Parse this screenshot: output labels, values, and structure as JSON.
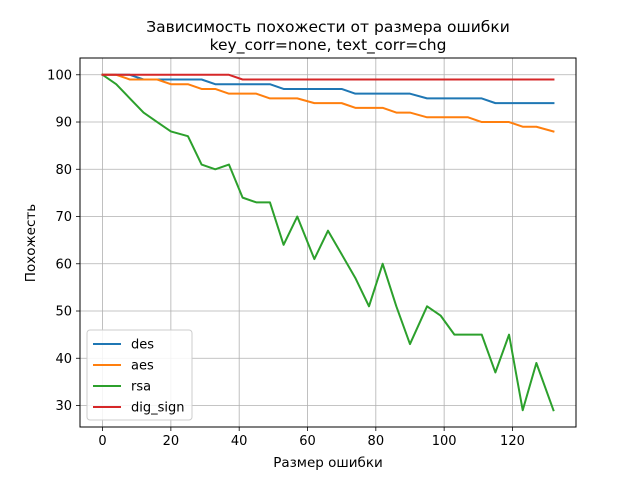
{
  "chart_data": {
    "type": "line",
    "title": "Зависимость похожести от размера ошибки",
    "subtitle": "key_corr=none, text_corr=chg",
    "xlabel": "Размер ошибки",
    "ylabel": "Похожесть",
    "xlim": [
      -6.6,
      138.6
    ],
    "ylim": [
      25.45,
      103.55
    ],
    "xticks": [
      0,
      20,
      40,
      60,
      80,
      100,
      120
    ],
    "yticks": [
      30,
      40,
      50,
      60,
      70,
      80,
      90,
      100
    ],
    "grid": true,
    "legend_position": "lower-left",
    "x": [
      0,
      4,
      8,
      12,
      16,
      20,
      25,
      29,
      33,
      37,
      41,
      45,
      49,
      53,
      57,
      62,
      66,
      70,
      74,
      78,
      82,
      86,
      90,
      95,
      99,
      103,
      107,
      111,
      115,
      119,
      123,
      127,
      132
    ],
    "series": [
      {
        "name": "des",
        "color": "#1f77b4",
        "values": [
          100,
          100,
          100,
          99,
          99,
          99,
          99,
          99,
          98,
          98,
          98,
          98,
          98,
          97,
          97,
          97,
          97,
          97,
          96,
          96,
          96,
          96,
          96,
          95,
          95,
          95,
          95,
          95,
          94,
          94,
          94,
          94,
          94
        ]
      },
      {
        "name": "aes",
        "color": "#ff7f0e",
        "values": [
          100,
          100,
          99,
          99,
          99,
          98,
          98,
          97,
          97,
          96,
          96,
          96,
          95,
          95,
          95,
          94,
          94,
          94,
          93,
          93,
          93,
          92,
          92,
          91,
          91,
          91,
          91,
          90,
          90,
          90,
          89,
          89,
          88
        ]
      },
      {
        "name": "rsa",
        "color": "#2ca02c",
        "values": [
          100,
          98,
          95,
          92,
          90,
          88,
          87,
          81,
          80,
          81,
          74,
          73,
          73,
          64,
          70,
          61,
          67,
          62,
          57,
          51,
          60,
          51,
          43,
          51,
          49,
          45,
          45,
          45,
          37,
          45,
          29,
          39,
          29
        ]
      },
      {
        "name": "dig_sign",
        "color": "#d62728",
        "values": [
          100,
          100,
          100,
          100,
          100,
          100,
          100,
          100,
          100,
          100,
          99,
          99,
          99,
          99,
          99,
          99,
          99,
          99,
          99,
          99,
          99,
          99,
          99,
          99,
          99,
          99,
          99,
          99,
          99,
          99,
          99,
          99,
          99
        ]
      }
    ]
  }
}
